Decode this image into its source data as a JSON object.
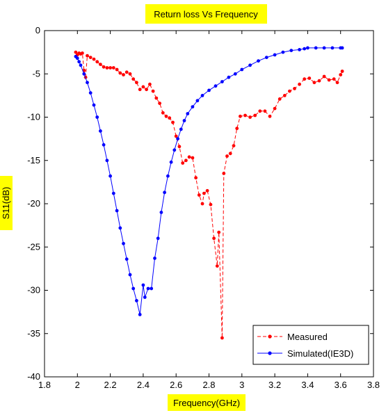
{
  "chart_data": {
    "type": "line",
    "title": "Return loss Vs Frequency",
    "xlabel": "Frequency(GHz)",
    "ylabel": "S11(dB)",
    "xlim": [
      1.8,
      3.8
    ],
    "ylim": [
      -40,
      0
    ],
    "xticks": [
      "1.8",
      "2",
      "2.2",
      "2.4",
      "2.6",
      "2.8",
      "3",
      "3.2",
      "3.4",
      "3.6",
      "3.8"
    ],
    "yticks": [
      "0",
      "-5",
      "-10",
      "-15",
      "-20",
      "-25",
      "-30",
      "-35",
      "-40"
    ],
    "grid": false,
    "legend_position": "bottom-right",
    "highlight_color": "#ffff00",
    "series": [
      {
        "name": "Measured",
        "color": "#ff0000",
        "line_style": "dashed",
        "marker": "dot",
        "points": [
          [
            1.99,
            -2.5
          ],
          [
            2.0,
            -2.8
          ],
          [
            2.01,
            -2.6
          ],
          [
            2.02,
            -2.7
          ],
          [
            2.03,
            -2.6
          ],
          [
            2.04,
            -4.6
          ],
          [
            2.05,
            -5.4
          ],
          [
            2.06,
            -2.9
          ],
          [
            2.08,
            -3.1
          ],
          [
            2.1,
            -3.3
          ],
          [
            2.12,
            -3.6
          ],
          [
            2.14,
            -3.9
          ],
          [
            2.16,
            -4.2
          ],
          [
            2.18,
            -4.3
          ],
          [
            2.2,
            -4.3
          ],
          [
            2.22,
            -4.3
          ],
          [
            2.24,
            -4.5
          ],
          [
            2.26,
            -4.9
          ],
          [
            2.28,
            -5.1
          ],
          [
            2.3,
            -4.8
          ],
          [
            2.32,
            -5.0
          ],
          [
            2.34,
            -5.6
          ],
          [
            2.36,
            -6.0
          ],
          [
            2.38,
            -6.8
          ],
          [
            2.4,
            -6.5
          ],
          [
            2.42,
            -6.8
          ],
          [
            2.44,
            -6.2
          ],
          [
            2.46,
            -7.0
          ],
          [
            2.48,
            -7.8
          ],
          [
            2.5,
            -8.4
          ],
          [
            2.52,
            -9.5
          ],
          [
            2.54,
            -9.9
          ],
          [
            2.56,
            -10.1
          ],
          [
            2.58,
            -10.6
          ],
          [
            2.6,
            -12.2
          ],
          [
            2.62,
            -13.4
          ],
          [
            2.64,
            -15.3
          ],
          [
            2.66,
            -15.0
          ],
          [
            2.68,
            -14.6
          ],
          [
            2.7,
            -14.7
          ],
          [
            2.72,
            -17.0
          ],
          [
            2.74,
            -19.0
          ],
          [
            2.76,
            -20.0
          ],
          [
            2.77,
            -18.8
          ],
          [
            2.79,
            -18.5
          ],
          [
            2.81,
            -20.1
          ],
          [
            2.83,
            -24.0
          ],
          [
            2.85,
            -27.2
          ],
          [
            2.86,
            -23.3
          ],
          [
            2.88,
            -35.5
          ],
          [
            2.89,
            -16.5
          ],
          [
            2.91,
            -14.5
          ],
          [
            2.93,
            -14.2
          ],
          [
            2.95,
            -13.3
          ],
          [
            2.97,
            -11.3
          ],
          [
            2.99,
            -9.9
          ],
          [
            3.02,
            -9.8
          ],
          [
            3.05,
            -10.0
          ],
          [
            3.08,
            -9.8
          ],
          [
            3.11,
            -9.3
          ],
          [
            3.14,
            -9.3
          ],
          [
            3.17,
            -9.9
          ],
          [
            3.2,
            -9.0
          ],
          [
            3.23,
            -7.9
          ],
          [
            3.26,
            -7.5
          ],
          [
            3.29,
            -7.0
          ],
          [
            3.32,
            -6.7
          ],
          [
            3.35,
            -6.2
          ],
          [
            3.38,
            -5.6
          ],
          [
            3.41,
            -5.5
          ],
          [
            3.44,
            -6.0
          ],
          [
            3.47,
            -5.8
          ],
          [
            3.5,
            -5.3
          ],
          [
            3.53,
            -5.7
          ],
          [
            3.56,
            -5.6
          ],
          [
            3.58,
            -6.0
          ],
          [
            3.6,
            -5.1
          ],
          [
            3.61,
            -4.7
          ]
        ]
      },
      {
        "name": "Simulated(IE3D)",
        "color": "#0000ff",
        "line_style": "solid",
        "marker": "dot",
        "points": [
          [
            1.99,
            -3.0
          ],
          [
            2.0,
            -3.2
          ],
          [
            2.01,
            -3.6
          ],
          [
            2.02,
            -4.0
          ],
          [
            2.04,
            -5.0
          ],
          [
            2.06,
            -6.0
          ],
          [
            2.08,
            -7.2
          ],
          [
            2.1,
            -8.6
          ],
          [
            2.12,
            -10.0
          ],
          [
            2.14,
            -11.6
          ],
          [
            2.16,
            -13.2
          ],
          [
            2.18,
            -15.0
          ],
          [
            2.2,
            -16.8
          ],
          [
            2.22,
            -18.8
          ],
          [
            2.24,
            -20.8
          ],
          [
            2.26,
            -22.8
          ],
          [
            2.28,
            -24.6
          ],
          [
            2.3,
            -26.4
          ],
          [
            2.32,
            -28.2
          ],
          [
            2.34,
            -29.8
          ],
          [
            2.36,
            -31.2
          ],
          [
            2.38,
            -32.8
          ],
          [
            2.4,
            -29.4
          ],
          [
            2.41,
            -30.8
          ],
          [
            2.43,
            -29.8
          ],
          [
            2.45,
            -29.8
          ],
          [
            2.47,
            -26.3
          ],
          [
            2.49,
            -24.0
          ],
          [
            2.51,
            -21.0
          ],
          [
            2.53,
            -18.7
          ],
          [
            2.55,
            -16.8
          ],
          [
            2.57,
            -15.2
          ],
          [
            2.59,
            -13.8
          ],
          [
            2.61,
            -12.5
          ],
          [
            2.63,
            -11.4
          ],
          [
            2.65,
            -10.4
          ],
          [
            2.67,
            -9.6
          ],
          [
            2.7,
            -8.8
          ],
          [
            2.73,
            -8.1
          ],
          [
            2.76,
            -7.5
          ],
          [
            2.8,
            -6.9
          ],
          [
            2.84,
            -6.4
          ],
          [
            2.88,
            -5.9
          ],
          [
            2.92,
            -5.4
          ],
          [
            2.96,
            -5.0
          ],
          [
            3.0,
            -4.5
          ],
          [
            3.05,
            -4.0
          ],
          [
            3.1,
            -3.5
          ],
          [
            3.15,
            -3.1
          ],
          [
            3.2,
            -2.8
          ],
          [
            3.25,
            -2.5
          ],
          [
            3.3,
            -2.3
          ],
          [
            3.35,
            -2.2
          ],
          [
            3.38,
            -2.1
          ],
          [
            3.4,
            -2.0
          ],
          [
            3.45,
            -2.0
          ],
          [
            3.5,
            -2.0
          ],
          [
            3.55,
            -2.0
          ],
          [
            3.6,
            -2.0
          ],
          [
            3.61,
            -2.0
          ]
        ]
      }
    ]
  }
}
